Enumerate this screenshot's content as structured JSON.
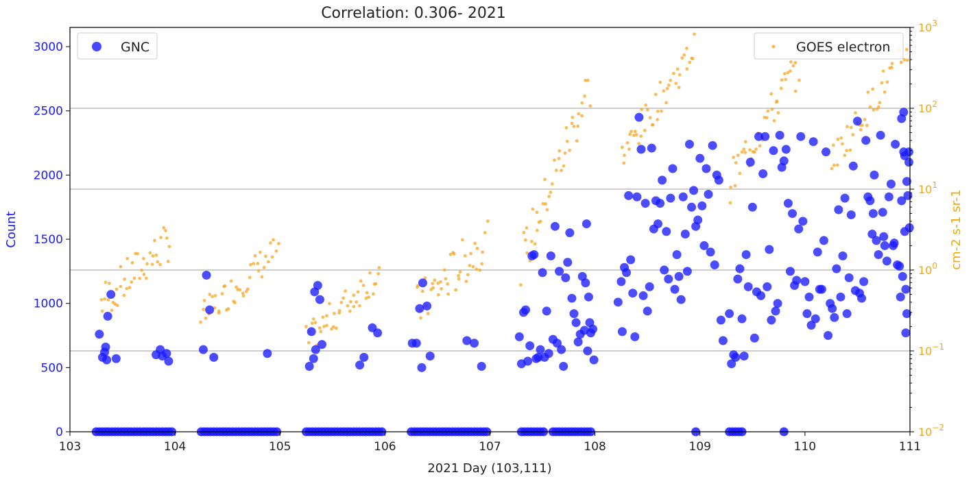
{
  "chart_data": {
    "type": "scatter",
    "title": "Correlation: 0.306- 2021",
    "xlabel": "2021 Day (103,111)",
    "ylabel_left": "Count",
    "ylabel_right": "cm-2 s-1 sr-1",
    "xlim": [
      103,
      111
    ],
    "ylim_left": [
      0,
      3150
    ],
    "ylim_right_log10": [
      -2,
      3
    ],
    "y_right_scale": "log",
    "grid": "horizontal",
    "x_ticks": [
      "103",
      "104",
      "105",
      "106",
      "107",
      "108",
      "109",
      "110",
      "111"
    ],
    "y_left_ticks": [
      "0",
      "500",
      "1000",
      "1500",
      "2000",
      "2500",
      "3000"
    ],
    "y_right_ticks": [
      {
        "base": "10",
        "exp": "−2"
      },
      {
        "base": "10",
        "exp": "−1"
      },
      {
        "base": "10",
        "exp": "0"
      },
      {
        "base": "10",
        "exp": "1"
      },
      {
        "base": "10",
        "exp": "2"
      },
      {
        "base": "10",
        "exp": "3"
      }
    ],
    "colors": {
      "gnc": "#1a1aff",
      "goes": "#f5a623",
      "grid": "#b0b0b0"
    },
    "series": [
      {
        "name": "GNC",
        "axis": "left",
        "points": [
          [
            103.28,
            760
          ],
          [
            103.31,
            580
          ],
          [
            103.34,
            660
          ],
          [
            103.36,
            900
          ],
          [
            103.39,
            1070
          ],
          [
            103.33,
            620
          ],
          [
            103.44,
            570
          ],
          [
            103.35,
            560
          ],
          [
            103.82,
            600
          ],
          [
            103.86,
            640
          ],
          [
            103.88,
            590
          ],
          [
            103.92,
            610
          ],
          [
            103.94,
            550
          ],
          [
            104.27,
            640
          ],
          [
            104.3,
            1220
          ],
          [
            104.33,
            950
          ],
          [
            104.37,
            580
          ],
          [
            104.88,
            610
          ],
          [
            105.28,
            510
          ],
          [
            105.3,
            780
          ],
          [
            105.32,
            570
          ],
          [
            105.33,
            1090
          ],
          [
            105.34,
            640
          ],
          [
            105.36,
            1140
          ],
          [
            105.38,
            1030
          ],
          [
            105.4,
            680
          ],
          [
            105.76,
            520
          ],
          [
            105.8,
            580
          ],
          [
            105.88,
            810
          ],
          [
            105.93,
            770
          ],
          [
            106.26,
            690
          ],
          [
            106.3,
            690
          ],
          [
            106.33,
            960
          ],
          [
            106.35,
            500
          ],
          [
            106.36,
            1160
          ],
          [
            106.4,
            980
          ],
          [
            106.43,
            590
          ],
          [
            106.78,
            710
          ],
          [
            106.85,
            690
          ],
          [
            106.92,
            510
          ],
          [
            107.28,
            740
          ],
          [
            107.3,
            530
          ],
          [
            107.32,
            930
          ],
          [
            107.34,
            950
          ],
          [
            107.36,
            550
          ],
          [
            107.38,
            670
          ],
          [
            107.4,
            1370
          ],
          [
            107.42,
            1380
          ],
          [
            107.44,
            570
          ],
          [
            107.46,
            580
          ],
          [
            107.48,
            640
          ],
          [
            107.5,
            1240
          ],
          [
            107.52,
            580
          ],
          [
            107.54,
            940
          ],
          [
            107.56,
            610
          ],
          [
            107.58,
            1370
          ],
          [
            107.6,
            720
          ],
          [
            107.62,
            1600
          ],
          [
            107.64,
            690
          ],
          [
            107.66,
            1250
          ],
          [
            107.68,
            640
          ],
          [
            107.7,
            510
          ],
          [
            107.72,
            1200
          ],
          [
            107.74,
            1320
          ],
          [
            107.76,
            1550
          ],
          [
            107.78,
            1040
          ],
          [
            107.8,
            920
          ],
          [
            107.82,
            850
          ],
          [
            107.84,
            700
          ],
          [
            107.86,
            760
          ],
          [
            107.88,
            1210
          ],
          [
            107.9,
            790
          ],
          [
            107.91,
            1160
          ],
          [
            107.92,
            1620
          ],
          [
            107.93,
            630
          ],
          [
            107.94,
            1050
          ],
          [
            107.95,
            850
          ],
          [
            107.96,
            770
          ],
          [
            107.98,
            800
          ],
          [
            107.99,
            560
          ],
          [
            108.22,
            1010
          ],
          [
            108.25,
            1170
          ],
          [
            108.26,
            780
          ],
          [
            108.28,
            1280
          ],
          [
            108.3,
            1240
          ],
          [
            108.32,
            1840
          ],
          [
            108.34,
            1340
          ],
          [
            108.36,
            1080
          ],
          [
            108.38,
            740
          ],
          [
            108.4,
            1830
          ],
          [
            108.42,
            2450
          ],
          [
            108.44,
            2200
          ],
          [
            108.46,
            1060
          ],
          [
            108.48,
            1780
          ],
          [
            108.5,
            940
          ],
          [
            108.52,
            1130
          ],
          [
            108.54,
            2210
          ],
          [
            108.56,
            1580
          ],
          [
            108.58,
            1800
          ],
          [
            108.6,
            1620
          ],
          [
            108.62,
            1780
          ],
          [
            108.64,
            1960
          ],
          [
            108.66,
            1260
          ],
          [
            108.68,
            1560
          ],
          [
            108.7,
            1190
          ],
          [
            108.72,
            1820
          ],
          [
            108.74,
            2050
          ],
          [
            108.76,
            1110
          ],
          [
            108.78,
            1380
          ],
          [
            108.8,
            1210
          ],
          [
            108.82,
            1030
          ],
          [
            108.84,
            1830
          ],
          [
            108.86,
            1540
          ],
          [
            108.88,
            1250
          ],
          [
            108.9,
            2240
          ],
          [
            108.92,
            1750
          ],
          [
            108.94,
            1880
          ],
          [
            108.96,
            1600
          ],
          [
            108.98,
            1650
          ],
          [
            109.0,
            2130
          ],
          [
            109.02,
            1760
          ],
          [
            109.04,
            1450
          ],
          [
            109.06,
            2050
          ],
          [
            109.08,
            1850
          ],
          [
            109.1,
            1400
          ],
          [
            109.12,
            2230
          ],
          [
            109.14,
            1300
          ],
          [
            109.16,
            2000
          ],
          [
            109.18,
            1960
          ],
          [
            109.2,
            870
          ],
          [
            109.22,
            710
          ],
          [
            109.28,
            920
          ],
          [
            109.3,
            530
          ],
          [
            109.32,
            600
          ],
          [
            109.34,
            580
          ],
          [
            109.36,
            1190
          ],
          [
            109.38,
            1270
          ],
          [
            109.4,
            880
          ],
          [
            109.42,
            590
          ],
          [
            109.44,
            1380
          ],
          [
            109.46,
            1130
          ],
          [
            109.48,
            2100
          ],
          [
            109.5,
            1750
          ],
          [
            109.52,
            730
          ],
          [
            109.54,
            1090
          ],
          [
            109.56,
            2300
          ],
          [
            109.58,
            1060
          ],
          [
            109.6,
            2010
          ],
          [
            109.62,
            2300
          ],
          [
            109.64,
            1130
          ],
          [
            109.66,
            1420
          ],
          [
            109.68,
            870
          ],
          [
            109.7,
            2190
          ],
          [
            109.72,
            940
          ],
          [
            109.74,
            1000
          ],
          [
            109.76,
            2310
          ],
          [
            109.78,
            2060
          ],
          [
            109.8,
            2110
          ],
          [
            109.82,
            2200
          ],
          [
            109.84,
            1780
          ],
          [
            109.86,
            1250
          ],
          [
            109.88,
            1700
          ],
          [
            109.9,
            1140
          ],
          [
            109.92,
            1180
          ],
          [
            109.94,
            1580
          ],
          [
            109.96,
            2300
          ],
          [
            109.98,
            1640
          ],
          [
            110.0,
            1170
          ],
          [
            110.02,
            920
          ],
          [
            110.04,
            1050
          ],
          [
            110.06,
            830
          ],
          [
            110.08,
            2260
          ],
          [
            110.1,
            880
          ],
          [
            110.12,
            1400
          ],
          [
            110.14,
            1110
          ],
          [
            110.16,
            1110
          ],
          [
            110.18,
            1490
          ],
          [
            110.2,
            2180
          ],
          [
            110.22,
            750
          ],
          [
            110.24,
            1000
          ],
          [
            110.26,
            960
          ],
          [
            110.28,
            890
          ],
          [
            110.3,
            1270
          ],
          [
            110.32,
            1730
          ],
          [
            110.34,
            1050
          ],
          [
            110.36,
            1370
          ],
          [
            110.38,
            1820
          ],
          [
            110.4,
            920
          ],
          [
            110.42,
            1200
          ],
          [
            110.44,
            1690
          ],
          [
            110.46,
            2070
          ],
          [
            110.48,
            1100
          ],
          [
            110.5,
            2420
          ],
          [
            110.52,
            1080
          ],
          [
            110.54,
            1040
          ],
          [
            110.56,
            1170
          ],
          [
            110.58,
            2270
          ],
          [
            110.6,
            1830
          ],
          [
            110.62,
            1800
          ],
          [
            110.64,
            1540
          ],
          [
            110.66,
            2000
          ],
          [
            110.68,
            1490
          ],
          [
            110.7,
            1380
          ],
          [
            110.72,
            2310
          ],
          [
            110.74,
            1710
          ],
          [
            110.76,
            1450
          ],
          [
            110.78,
            1330
          ],
          [
            110.8,
            1830
          ],
          [
            110.82,
            1930
          ],
          [
            110.84,
            1450
          ],
          [
            110.86,
            2240
          ],
          [
            110.88,
            1300
          ],
          [
            110.9,
            1290
          ],
          [
            110.92,
            1800
          ],
          [
            110.93,
            1210
          ],
          [
            110.94,
            2180
          ],
          [
            110.95,
            1560
          ],
          [
            110.96,
            770
          ],
          [
            110.97,
            1950
          ],
          [
            110.98,
            1840
          ],
          [
            110.99,
            2100
          ],
          [
            110.995,
            1590
          ],
          [
            110.65,
            1700
          ],
          [
            110.75,
            1520
          ],
          [
            110.85,
            1470
          ],
          [
            110.91,
            1050
          ],
          [
            110.92,
            2440
          ],
          [
            110.94,
            2490
          ],
          [
            110.95,
            2150
          ],
          [
            110.96,
            1110
          ],
          [
            110.97,
            920
          ],
          [
            110.99,
            2180
          ]
        ],
        "zero_points_x": [
          103.25,
          103.28,
          103.31,
          103.34,
          103.37,
          103.4,
          103.43,
          103.46,
          103.49,
          103.52,
          103.55,
          103.58,
          103.61,
          103.64,
          103.67,
          103.7,
          103.73,
          103.76,
          103.79,
          103.82,
          103.85,
          103.88,
          103.91,
          103.94,
          103.97,
          104.25,
          104.28,
          104.31,
          104.34,
          104.37,
          104.4,
          104.43,
          104.46,
          104.49,
          104.52,
          104.55,
          104.58,
          104.61,
          104.64,
          104.67,
          104.7,
          104.73,
          104.76,
          104.79,
          104.82,
          104.85,
          104.88,
          104.91,
          104.94,
          104.97,
          105.25,
          105.28,
          105.31,
          105.34,
          105.37,
          105.4,
          105.43,
          105.46,
          105.49,
          105.52,
          105.55,
          105.58,
          105.61,
          105.64,
          105.67,
          105.7,
          105.73,
          105.76,
          105.79,
          105.82,
          105.85,
          105.88,
          105.91,
          105.94,
          105.97,
          106.25,
          106.28,
          106.31,
          106.34,
          106.37,
          106.4,
          106.43,
          106.46,
          106.49,
          106.52,
          106.55,
          106.58,
          106.61,
          106.64,
          106.67,
          106.7,
          106.73,
          106.76,
          106.79,
          106.82,
          106.85,
          106.88,
          106.91,
          106.94,
          106.97,
          107.3,
          107.33,
          107.36,
          107.39,
          107.42,
          107.45,
          107.48,
          107.51,
          107.6,
          107.63,
          107.66,
          107.69,
          107.72,
          107.75,
          107.78,
          107.81,
          107.84,
          107.87,
          107.9,
          107.93,
          107.96,
          108.96,
          109.28,
          109.31,
          109.34,
          109.37,
          109.4,
          109.8
        ]
      },
      {
        "name": "GOES electron",
        "axis": "right",
        "segments": [
          {
            "x0": 103.3,
            "x1": 103.95,
            "v0": 0.4,
            "v1": 2.3,
            "scatter": 0.5
          },
          {
            "x0": 104.25,
            "x1": 104.98,
            "v0": 0.25,
            "v1": 1.8,
            "scatter": 0.4
          },
          {
            "x0": 105.25,
            "x1": 105.95,
            "v0": 0.13,
            "v1": 0.95,
            "scatter": 0.4
          },
          {
            "x0": 106.3,
            "x1": 106.97,
            "v0": 0.33,
            "v1": 2.4,
            "scatter": 0.6
          },
          {
            "x0": 107.3,
            "x1": 107.95,
            "v0": 1.3,
            "v1": 190,
            "scatter": 0.6
          },
          {
            "x0": 108.25,
            "x1": 108.95,
            "v0": 25,
            "v1": 560,
            "scatter": 0.4
          },
          {
            "x0": 109.28,
            "x1": 109.95,
            "v0": 12,
            "v1": 370,
            "scatter": 0.5
          },
          {
            "x0": 110.25,
            "x1": 110.98,
            "v0": 22,
            "v1": 540,
            "scatter": 0.4
          }
        ]
      }
    ],
    "legend": {
      "gnc_position": "top-left",
      "goes_position": "top-right"
    }
  }
}
